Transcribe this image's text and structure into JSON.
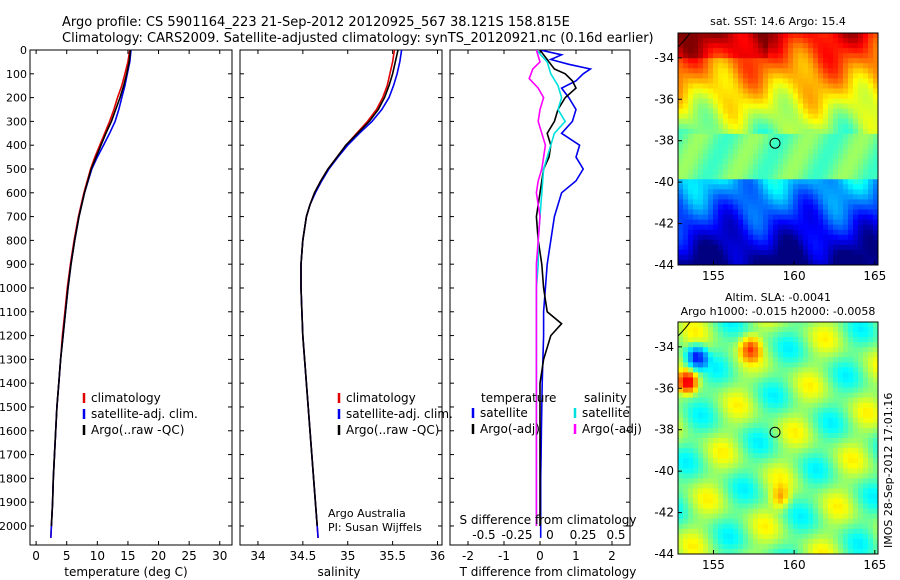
{
  "header": {
    "line1": "Argo profile: CS 5901164_223 21-Sep-2012 20120925_567 38.121S 158.815E",
    "line2": "Climatology: CARS2009. Satellite-adjusted climatology: synTS_20120921.nc (0.16d earlier)"
  },
  "watermark": "IMOS 28-Sep-2012 17:01:16",
  "colors": {
    "climatology": "#e00000",
    "satellite": "#0000ee",
    "argo": "#000000",
    "sal_satellite": "#00e0e0",
    "sal_argo": "#ff00ff"
  },
  "chart_data": [
    {
      "type": "line",
      "id": "temperature",
      "xlabel": "temperature (deg C)",
      "ylabel": "",
      "xlim": [
        -1,
        32
      ],
      "ylim": [
        2080,
        0
      ],
      "xticks": [
        0,
        5,
        10,
        15,
        20,
        25,
        30
      ],
      "yticks": [
        0,
        100,
        200,
        300,
        400,
        500,
        600,
        700,
        800,
        900,
        1000,
        1100,
        1200,
        1300,
        1400,
        1500,
        1600,
        1700,
        1800,
        1900,
        2000
      ],
      "legend": [
        "climatology",
        "satellite-adj. clim.",
        "Argo(..raw -QC)"
      ],
      "legend_position": "bottom-right",
      "series": [
        {
          "name": "climatology",
          "color": "#e00000",
          "depth": [
            0,
            50,
            100,
            150,
            200,
            250,
            300,
            350,
            400,
            450,
            500,
            600,
            700,
            800,
            900,
            1000,
            1100,
            1200,
            1300,
            1400,
            1500,
            1600,
            1700,
            1800,
            1900,
            2000,
            2050
          ],
          "values": [
            15.3,
            15.0,
            14.5,
            14.0,
            13.3,
            12.7,
            12.0,
            11.2,
            10.4,
            9.6,
            8.9,
            7.8,
            6.9,
            6.2,
            5.6,
            5.1,
            4.7,
            4.3,
            4.0,
            3.7,
            3.4,
            3.2,
            3.0,
            2.8,
            2.7,
            2.5,
            2.4
          ]
        },
        {
          "name": "satellite-adj. clim.",
          "color": "#0000ee",
          "depth": [
            0,
            50,
            100,
            150,
            200,
            250,
            300,
            350,
            400,
            450,
            500,
            600,
            700,
            800,
            900,
            1000,
            1100,
            1200,
            1300,
            1400,
            1500,
            1600,
            1700,
            1800,
            1900,
            2000,
            2050
          ],
          "values": [
            15.5,
            15.3,
            14.9,
            14.5,
            14.0,
            13.5,
            12.9,
            12.0,
            11.0,
            10.0,
            9.1,
            7.9,
            7.0,
            6.3,
            5.7,
            5.2,
            4.8,
            4.4,
            4.0,
            3.7,
            3.4,
            3.2,
            3.0,
            2.8,
            2.7,
            2.5,
            2.4
          ]
        },
        {
          "name": "Argo(..raw -QC)",
          "color": "#000000",
          "depth": [
            0,
            50,
            100,
            150,
            200,
            250,
            300,
            350,
            400,
            450,
            500,
            600,
            700,
            800,
            900,
            1000,
            1100,
            1200,
            1300,
            1400,
            1500,
            1600,
            1700,
            1800,
            1900,
            2000
          ],
          "values": [
            15.4,
            15.2,
            14.8,
            14.3,
            13.7,
            13.0,
            12.3,
            11.4,
            10.6,
            9.8,
            9.0,
            7.9,
            7.0,
            6.3,
            5.7,
            5.2,
            4.8,
            4.4,
            4.0,
            3.7,
            3.4,
            3.2,
            3.0,
            2.8,
            2.7,
            2.5
          ]
        }
      ]
    },
    {
      "type": "line",
      "id": "salinity",
      "xlabel": "salinity",
      "ylabel": "",
      "xlim": [
        33.8,
        36.05
      ],
      "ylim": [
        2080,
        0
      ],
      "xticks": [
        34,
        34.5,
        35,
        35.5,
        36
      ],
      "xticklabels": [
        "34",
        "34.5",
        "35",
        "35.5",
        "36"
      ],
      "legend": [
        "climatology",
        "satellite-adj. clim.",
        "Argo(..raw -QC)"
      ],
      "legend_position": "bottom-right",
      "annotation": [
        "Argo Australia",
        "PI: Susan Wijffels"
      ],
      "series": [
        {
          "name": "climatology",
          "color": "#e00000",
          "depth": [
            0,
            50,
            100,
            150,
            200,
            250,
            300,
            350,
            400,
            450,
            500,
            550,
            600,
            650,
            700,
            800,
            900,
            1000,
            1100,
            1200,
            1300,
            1400,
            1500,
            1600,
            1700,
            1800,
            1900,
            2000,
            2050
          ],
          "values": [
            35.52,
            35.5,
            35.47,
            35.44,
            35.39,
            35.32,
            35.22,
            35.1,
            34.98,
            34.88,
            34.78,
            34.7,
            34.63,
            34.58,
            34.54,
            34.5,
            34.48,
            34.48,
            34.49,
            34.5,
            34.52,
            34.54,
            34.56,
            34.58,
            34.6,
            34.62,
            34.64,
            34.66,
            34.67
          ]
        },
        {
          "name": "satellite-adj. clim.",
          "color": "#0000ee",
          "depth": [
            0,
            50,
            100,
            150,
            200,
            250,
            300,
            350,
            400,
            450,
            500,
            550,
            600,
            650,
            700,
            800,
            900,
            1000,
            1100,
            1200,
            1300,
            1400,
            1500,
            1600,
            1700,
            1800,
            1900,
            2000,
            2050
          ],
          "values": [
            35.6,
            35.58,
            35.55,
            35.51,
            35.46,
            35.38,
            35.27,
            35.13,
            35.0,
            34.89,
            34.79,
            34.71,
            34.64,
            34.58,
            34.54,
            34.5,
            34.48,
            34.48,
            34.49,
            34.5,
            34.52,
            34.54,
            34.56,
            34.58,
            34.6,
            34.62,
            34.64,
            34.66,
            34.67
          ]
        },
        {
          "name": "Argo(..raw -QC)",
          "color": "#000000",
          "depth": [
            0,
            50,
            100,
            150,
            200,
            250,
            300,
            350,
            400,
            450,
            500,
            550,
            600,
            650,
            700,
            800,
            900,
            1000,
            1100,
            1200,
            1300,
            1400,
            1500,
            1600,
            1700,
            1800,
            1900,
            2000
          ],
          "values": [
            35.56,
            35.53,
            35.5,
            35.46,
            35.41,
            35.34,
            35.24,
            35.11,
            34.98,
            34.88,
            34.78,
            34.7,
            34.63,
            34.58,
            34.54,
            34.5,
            34.48,
            34.48,
            34.49,
            34.5,
            34.52,
            34.54,
            34.56,
            34.58,
            34.6,
            34.62,
            34.64,
            34.66
          ]
        }
      ]
    },
    {
      "type": "line",
      "id": "difference",
      "xlabel": "T difference from climatology",
      "xlabel2": "S difference from climatology",
      "xlim": [
        -2.5,
        2.5
      ],
      "ylim": [
        2080,
        0
      ],
      "xticks": [
        -2,
        -1,
        0,
        1,
        2
      ],
      "xticks_s": [
        "-0.5",
        "-0.25",
        "0",
        "0.25",
        "0.5"
      ],
      "legend_temperature": {
        "title": "temperature",
        "items": [
          "satellite",
          "Argo(-adj)"
        ]
      },
      "legend_salinity": {
        "title": "salinity",
        "items": [
          "satellite",
          "Argo(-adj)"
        ]
      },
      "legend_position": "center",
      "series": [
        {
          "name": "satellite",
          "color": "#0000ee",
          "depth": [
            0,
            20,
            40,
            60,
            80,
            100,
            130,
            160,
            200,
            250,
            300,
            350,
            400,
            450,
            500,
            550,
            600,
            700,
            800,
            900,
            1000,
            1100,
            1200,
            1300,
            1400,
            1500,
            1600,
            1700,
            1800,
            1900,
            2000,
            2050
          ],
          "values": [
            0.0,
            0.6,
            0.3,
            0.8,
            1.4,
            1.2,
            1.0,
            0.6,
            0.8,
            1.0,
            0.9,
            0.6,
            1.1,
            1.0,
            1.2,
            1.0,
            0.6,
            0.4,
            0.3,
            0.2,
            0.15,
            0.1,
            0.1,
            0.08,
            0.06,
            0.05,
            0.04,
            0.03,
            0.02,
            0.02,
            0.02,
            0.02
          ]
        },
        {
          "name": "Argo(-adj)",
          "color": "#000000",
          "depth": [
            0,
            20,
            40,
            60,
            80,
            100,
            130,
            160,
            200,
            250,
            300,
            350,
            400,
            450,
            500,
            600,
            700,
            800,
            900,
            1000,
            1100,
            1150,
            1200,
            1300,
            1400,
            1500,
            1600,
            1700,
            1800,
            1900,
            2000
          ],
          "values": [
            0.0,
            0.1,
            0.2,
            0.3,
            0.4,
            0.7,
            0.9,
            1.0,
            0.7,
            0.5,
            0.4,
            0.2,
            0.3,
            0.25,
            0.1,
            0.0,
            -0.1,
            -0.05,
            0.05,
            0.1,
            0.2,
            0.6,
            0.3,
            0.1,
            0.0,
            0.0,
            0.0,
            0.0,
            0.0,
            0.0,
            0.0
          ]
        },
        {
          "name": "satellite",
          "color": "#00e0e0",
          "depth": [
            0,
            50,
            100,
            150,
            200,
            250,
            300,
            350,
            400,
            450,
            500,
            600,
            700,
            800,
            900,
            1000,
            1100,
            1200,
            1300,
            1400,
            1500,
            1600,
            1700,
            1800,
            1900,
            2000
          ],
          "values": [
            -0.1,
            0.2,
            0.3,
            0.5,
            0.6,
            0.5,
            0.7,
            0.4,
            0.3,
            0.2,
            0.1,
            0.05,
            0.0,
            -0.05,
            -0.05,
            -0.1,
            -0.1,
            -0.1,
            -0.1,
            -0.1,
            -0.1,
            -0.1,
            -0.1,
            -0.1,
            -0.1,
            -0.1
          ]
        },
        {
          "name": "Argo(-adj)",
          "color": "#ff00ff",
          "depth": [
            0,
            50,
            80,
            120,
            160,
            200,
            250,
            300,
            350,
            400,
            450,
            500,
            550,
            600,
            700,
            800,
            900,
            1000,
            1100,
            1200,
            1300,
            1400,
            1500,
            1600,
            1700,
            1800,
            1900,
            2000
          ],
          "values": [
            -0.1,
            0.0,
            -0.2,
            -0.3,
            -0.05,
            0.1,
            0.0,
            -0.05,
            0.05,
            0.15,
            0.1,
            0.05,
            -0.05,
            -0.1,
            0.0,
            -0.05,
            -0.1,
            -0.1,
            -0.1,
            -0.1,
            -0.1,
            -0.1,
            -0.1,
            -0.1,
            -0.1,
            -0.1,
            -0.1,
            -0.1
          ]
        }
      ]
    },
    {
      "type": "heatmap",
      "id": "sst-map",
      "title": "sat. SST: 14.6 Argo: 15.4",
      "xlim": [
        152.8,
        165.2
      ],
      "ylim": [
        -44,
        -32.8
      ],
      "xticks": [
        155,
        160,
        165
      ],
      "yticks": [
        -34,
        -36,
        -38,
        -40,
        -42,
        -44
      ],
      "marker": {
        "lon": 158.815,
        "lat": -38.121
      }
    },
    {
      "type": "heatmap",
      "id": "sla-map",
      "title_line1": "Altim. SLA: -0.0041",
      "title_line2": "Argo h1000: -0.015 h2000: -0.0058",
      "xlim": [
        152.8,
        165.2
      ],
      "ylim": [
        -44,
        -32.8
      ],
      "xticks": [
        155,
        160,
        165
      ],
      "yticks": [
        -34,
        -36,
        -38,
        -40,
        -42,
        -44
      ],
      "marker": {
        "lon": 158.815,
        "lat": -38.121
      }
    }
  ]
}
